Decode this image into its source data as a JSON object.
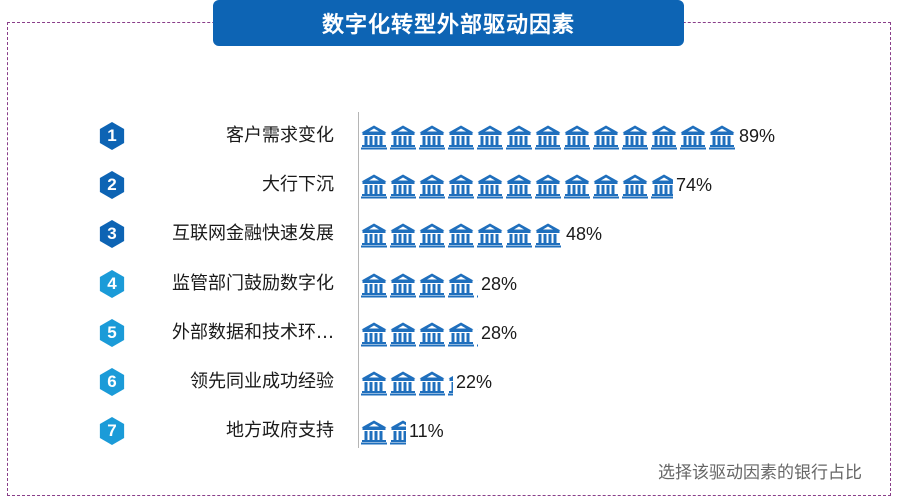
{
  "title": "数字化转型外部驱动因素",
  "footnote": "选择该驱动因素的银行占比",
  "colors": {
    "badge_blue": "#0d64b4",
    "badge_light": "#1b9bd8",
    "icon_blue": "#1f6fbd",
    "frame": "#8a3e8a"
  },
  "icon": "bank-icon",
  "chart_data": {
    "type": "bar",
    "orientation": "horizontal",
    "ylim": [
      0,
      100
    ],
    "categories": [
      {
        "rank": "1",
        "label": "客户需求变化",
        "value": 89,
        "value_label": "89%"
      },
      {
        "rank": "2",
        "label": "大行下沉",
        "value": 74,
        "value_label": "74%"
      },
      {
        "rank": "3",
        "label": "互联网金融快速发展",
        "value": 48,
        "value_label": "48%"
      },
      {
        "rank": "4",
        "label": "监管部门鼓励数字化",
        "value": 28,
        "value_label": "28%"
      },
      {
        "rank": "5",
        "label": "外部数据和技术环…",
        "value": 28,
        "value_label": "28%"
      },
      {
        "rank": "6",
        "label": "领先同业成功经验",
        "value": 22,
        "value_label": "22%"
      },
      {
        "rank": "7",
        "label": "地方政府支持",
        "value": 11,
        "value_label": "11%"
      }
    ]
  }
}
